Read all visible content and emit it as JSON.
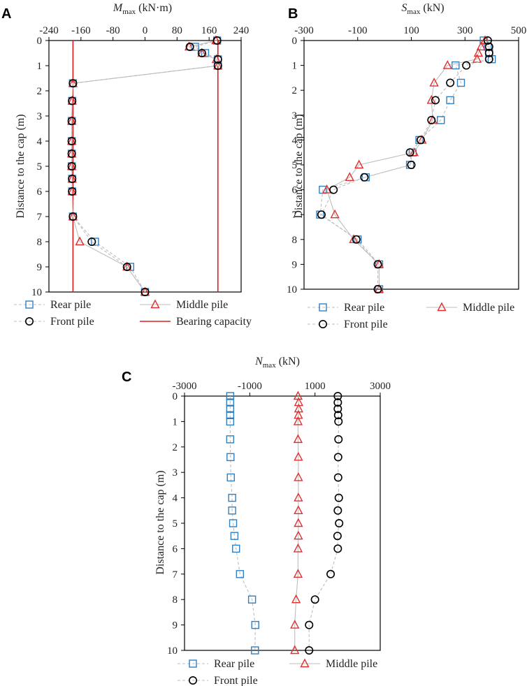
{
  "colors": {
    "rear": "#2f7fc1",
    "middle": "#e03030",
    "front": "#000000",
    "capacity": "#e41a1c",
    "connector": "#bdbdbd"
  },
  "chart_data": [
    {
      "type": "scatter",
      "panel": "A",
      "title_main": "M",
      "title_sub": "max",
      "title_unit": " (kN·m)",
      "ylabel": "Distance to the cap (m)",
      "xlim": [
        -240,
        240
      ],
      "xticks": [
        -240,
        -160,
        -80,
        0,
        80,
        160,
        240
      ],
      "ylim": [
        0,
        10
      ],
      "yticks": [
        0,
        1,
        2,
        3,
        4,
        5,
        6,
        7,
        8,
        9,
        10
      ],
      "y": [
        0,
        0.25,
        0.5,
        0.75,
        1,
        1.7,
        2.4,
        3.2,
        4,
        4.5,
        5,
        5.5,
        6,
        7,
        8,
        9,
        10
      ],
      "series": [
        {
          "name": "Rear pile",
          "key": "rear",
          "marker": "square",
          "values": [
            180,
            125,
            150,
            182,
            182,
            -180,
            -182,
            -183,
            -183,
            -183,
            -183,
            -182,
            -182,
            -180,
            -125,
            -37,
            0
          ]
        },
        {
          "name": "Middle pile",
          "key": "middle",
          "marker": "triangle",
          "values": [
            177,
            110,
            142,
            178,
            182,
            -180,
            -182,
            -183,
            -183,
            -183,
            -183,
            -182,
            -182,
            -180,
            -163,
            -45,
            0
          ]
        },
        {
          "name": "Front pile",
          "key": "front",
          "marker": "circle",
          "values": [
            180,
            112,
            142,
            182,
            182,
            -180,
            -182,
            -183,
            -183,
            -183,
            -183,
            -182,
            -182,
            -180,
            -133,
            -45,
            0
          ]
        }
      ],
      "bearing_capacity": {
        "name": "Bearing capacity",
        "values": [
          -180,
          182
        ]
      },
      "legend": [
        "Rear pile",
        "Middle pile",
        "Front pile",
        "Bearing capacity"
      ]
    },
    {
      "type": "scatter",
      "panel": "B",
      "title_main": "S",
      "title_sub": "max",
      "title_unit": " (kN)",
      "ylabel": "Distance to the cap (m)",
      "xlim": [
        -300,
        500
      ],
      "xticks": [
        -300,
        -100,
        100,
        300,
        500
      ],
      "ylim": [
        0,
        10
      ],
      "yticks": [
        0,
        1,
        2,
        3,
        4,
        5,
        6,
        7,
        8,
        9,
        10
      ],
      "y": [
        0,
        0.25,
        0.5,
        0.75,
        1,
        1.7,
        2.4,
        3.2,
        4,
        4.5,
        5,
        5.5,
        6,
        7,
        8,
        9,
        10
      ],
      "series": [
        {
          "name": "Rear pile",
          "key": "rear",
          "marker": "square",
          "values": [
            370,
            385,
            390,
            400,
            265,
            285,
            245,
            210,
            130,
            105,
            95,
            -70,
            -230,
            -240,
            -100,
            -20,
            -20
          ]
        },
        {
          "name": "Middle pile",
          "key": "middle",
          "marker": "triangle",
          "values": [
            375,
            360,
            350,
            345,
            235,
            185,
            175,
            180,
            140,
            110,
            -95,
            -130,
            -215,
            -185,
            -115,
            -20,
            -20
          ]
        },
        {
          "name": "Front pile",
          "key": "front",
          "marker": "circle",
          "values": [
            385,
            390,
            390,
            390,
            305,
            245,
            190,
            175,
            135,
            95,
            100,
            -75,
            -190,
            -235,
            -105,
            -25,
            -25
          ]
        }
      ],
      "legend": [
        "Rear pile",
        "Middle pile",
        "Front pile"
      ]
    },
    {
      "type": "scatter",
      "panel": "C",
      "title_main": "N",
      "title_sub": "max",
      "title_unit": " (kN)",
      "ylabel": "Distance to the cap (m)",
      "xlim": [
        -3000,
        3000
      ],
      "xticks": [
        -3000,
        -1000,
        1000,
        3000
      ],
      "ylim": [
        0,
        10
      ],
      "yticks": [
        0,
        1,
        2,
        3,
        4,
        5,
        6,
        7,
        8,
        9,
        10
      ],
      "y": [
        0,
        0.25,
        0.5,
        0.75,
        1,
        1.7,
        2.4,
        3.2,
        4,
        4.5,
        5,
        5.5,
        6,
        7,
        8,
        9,
        10
      ],
      "series": [
        {
          "name": "Rear pile",
          "key": "rear",
          "marker": "square",
          "values": [
            -1600,
            -1600,
            -1600,
            -1600,
            -1600,
            -1600,
            -1590,
            -1580,
            -1540,
            -1540,
            -1510,
            -1470,
            -1420,
            -1300,
            -930,
            -830,
            -840
          ]
        },
        {
          "name": "Middle pile",
          "key": "middle",
          "marker": "triangle",
          "values": [
            480,
            500,
            500,
            490,
            480,
            480,
            490,
            490,
            490,
            490,
            490,
            490,
            480,
            480,
            420,
            380,
            380
          ]
        },
        {
          "name": "Front pile",
          "key": "front",
          "marker": "circle",
          "values": [
            1700,
            1700,
            1700,
            1710,
            1720,
            1720,
            1710,
            1710,
            1730,
            1700,
            1740,
            1690,
            1700,
            1480,
            1000,
            820,
            820
          ]
        }
      ],
      "legend": [
        "Rear pile",
        "Middle pile",
        "Front pile"
      ]
    }
  ]
}
